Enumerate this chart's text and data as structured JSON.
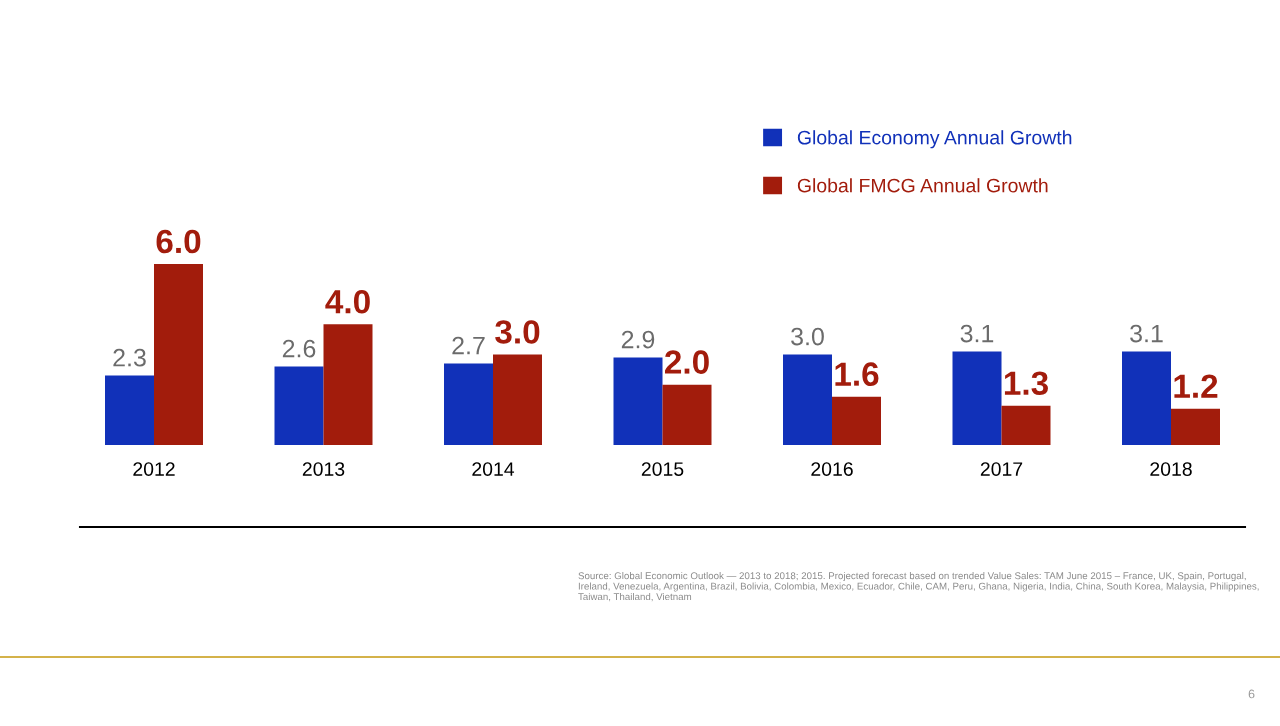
{
  "chart_data": {
    "type": "bar",
    "categories": [
      "2012",
      "2013",
      "2014",
      "2015",
      "2016",
      "2017",
      "2018"
    ],
    "series": [
      {
        "name": "Global Economy Annual Growth",
        "color": "#1131b9",
        "values": [
          2.3,
          2.6,
          2.7,
          2.9,
          3.0,
          3.1,
          3.1
        ],
        "value_labels": [
          "2.3",
          "2.6",
          "2.7",
          "2.9",
          "3.0",
          "3.1",
          "3.1"
        ]
      },
      {
        "name": "Global FMCG Annual Growth",
        "color": "#a21c0c",
        "values": [
          6.0,
          4.0,
          3.0,
          2.0,
          1.6,
          1.3,
          1.2
        ],
        "value_labels": [
          "6.0",
          "4.0",
          "3.0",
          "2.0",
          "1.6",
          "1.3",
          "1.2"
        ]
      }
    ],
    "legend": "top right",
    "grid": false,
    "tick_labels": "x",
    "annotations": [
      "Source: Global Economic Outlook — 2013 to 2018; 2015. Projected forecast based on trended Value Sales: TAM June 2015 – France, UK, Spain, Portugal, Ireland, Venezuela, Argentina, Brazil, Bolivia, Colombia, Mexico, Ecuador, Chile, CAM, Peru, Ghana, Nigeria, India, China, South Korea, Malaysia, Philippines, Taiwan, Thailand, Vietnam",
      "6"
    ]
  }
}
